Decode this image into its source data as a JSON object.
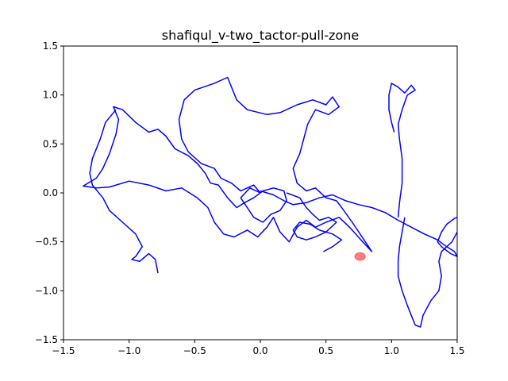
{
  "chart_data": {
    "type": "line",
    "title": "shafiqul_v-two_tactor-pull-zone",
    "xlabel": "",
    "ylabel": "",
    "xlim": [
      -1.5,
      1.5
    ],
    "ylim": [
      -1.5,
      1.5
    ],
    "grid": false,
    "x_ticks": [
      "−1.5",
      "−1.0",
      "−0.5",
      "0.0",
      "0.5",
      "1.0",
      "1.5"
    ],
    "x_tick_values": [
      -1.5,
      -1.0,
      -0.5,
      0.0,
      0.5,
      1.0,
      1.5
    ],
    "y_ticks": [
      "−1.5",
      "−1.0",
      "−0.5",
      "0.0",
      "0.5",
      "1.0",
      "1.5"
    ],
    "y_tick_values": [
      -1.5,
      -1.0,
      -0.5,
      0.0,
      0.5,
      1.0,
      1.5
    ],
    "colors": {
      "trajectory": "#0000ff",
      "target": "#ff0000"
    },
    "target": {
      "x": 0.76,
      "y": -0.65,
      "rx": 0.04,
      "ry": 0.04,
      "opacity": 0.5
    },
    "series": [
      {
        "values": [
          [
            0.0,
            0.0
          ],
          [
            -0.05,
            0.08
          ],
          [
            -0.15,
            0.02
          ],
          [
            -0.22,
            0.1
          ],
          [
            -0.3,
            0.15
          ],
          [
            -0.35,
            0.25
          ],
          [
            -0.45,
            0.3
          ],
          [
            -0.55,
            0.42
          ],
          [
            -0.6,
            0.55
          ],
          [
            -0.62,
            0.75
          ],
          [
            -0.58,
            0.95
          ],
          [
            -0.5,
            1.05
          ],
          [
            -0.35,
            1.12
          ],
          [
            -0.25,
            1.18
          ],
          [
            -0.18,
            0.95
          ],
          [
            -0.1,
            0.85
          ],
          [
            0.05,
            0.8
          ],
          [
            0.15,
            0.82
          ],
          [
            0.28,
            0.9
          ],
          [
            0.4,
            0.95
          ],
          [
            0.5,
            0.9
          ],
          [
            0.55,
            0.98
          ],
          [
            0.6,
            0.88
          ],
          [
            0.52,
            0.8
          ],
          [
            0.42,
            0.85
          ],
          [
            0.36,
            0.7
          ],
          [
            0.33,
            0.55
          ],
          [
            0.3,
            0.4
          ],
          [
            0.25,
            0.25
          ],
          [
            0.28,
            0.1
          ],
          [
            0.35,
            0.02
          ],
          [
            0.42,
            0.05
          ],
          [
            0.5,
            -0.05
          ],
          [
            0.58,
            -0.08
          ],
          [
            0.62,
            -0.15
          ],
          [
            0.7,
            -0.3
          ],
          [
            0.8,
            -0.5
          ],
          [
            0.85,
            -0.6
          ],
          [
            0.78,
            -0.5
          ],
          [
            0.68,
            -0.35
          ],
          [
            0.6,
            -0.25
          ],
          [
            0.5,
            -0.3
          ],
          [
            0.42,
            -0.35
          ],
          [
            0.35,
            -0.28
          ],
          [
            0.28,
            -0.35
          ],
          [
            0.22,
            -0.5
          ],
          [
            0.15,
            -0.4
          ],
          [
            0.1,
            -0.25
          ],
          [
            0.05,
            -0.35
          ],
          [
            -0.02,
            -0.45
          ],
          [
            -0.1,
            -0.38
          ],
          [
            -0.2,
            -0.45
          ],
          [
            -0.28,
            -0.42
          ],
          [
            -0.35,
            -0.3
          ],
          [
            -0.4,
            -0.15
          ],
          [
            -0.48,
            -0.05
          ],
          [
            -0.6,
            0.05
          ],
          [
            -0.72,
            0.02
          ],
          [
            -0.85,
            0.08
          ],
          [
            -1.0,
            0.12
          ],
          [
            -1.15,
            0.06
          ],
          [
            -1.25,
            0.05
          ],
          [
            -1.35,
            0.07
          ],
          [
            -1.25,
            0.15
          ],
          [
            -1.2,
            0.25
          ],
          [
            -1.15,
            0.4
          ],
          [
            -1.1,
            0.6
          ],
          [
            -1.08,
            0.75
          ],
          [
            -1.12,
            0.88
          ],
          [
            -1.05,
            0.85
          ],
          [
            -0.95,
            0.72
          ],
          [
            -0.85,
            0.62
          ],
          [
            -0.78,
            0.65
          ],
          [
            -0.72,
            0.58
          ],
          [
            -0.65,
            0.45
          ],
          [
            -0.55,
            0.38
          ],
          [
            -0.48,
            0.3
          ],
          [
            -0.42,
            0.2
          ],
          [
            -0.38,
            0.1
          ],
          [
            -0.32,
            0.08
          ],
          [
            -0.25,
            -0.05
          ],
          [
            -0.18,
            -0.15
          ],
          [
            -0.12,
            -0.1
          ],
          [
            -0.05,
            -0.05
          ],
          [
            0.02,
            0.02
          ],
          [
            0.1,
            0.05
          ],
          [
            0.18,
            0.02
          ],
          [
            0.2,
            -0.08
          ],
          [
            0.15,
            -0.18
          ],
          [
            0.08,
            -0.22
          ],
          [
            0.02,
            -0.3
          ],
          [
            -0.05,
            -0.25
          ],
          [
            -0.1,
            -0.15
          ],
          [
            -0.15,
            -0.05
          ],
          [
            -0.08,
            0.05
          ],
          [
            0.0,
            0.0
          ]
        ]
      },
      {
        "values": [
          [
            -1.1,
            0.85
          ],
          [
            -1.18,
            0.72
          ],
          [
            -1.22,
            0.55
          ],
          [
            -1.28,
            0.35
          ],
          [
            -1.3,
            0.2
          ],
          [
            -1.28,
            0.08
          ],
          [
            -1.2,
            -0.05
          ],
          [
            -1.15,
            -0.18
          ],
          [
            -1.05,
            -0.3
          ],
          [
            -0.95,
            -0.42
          ],
          [
            -0.9,
            -0.55
          ],
          [
            -0.95,
            -0.65
          ],
          [
            -0.98,
            -0.68
          ],
          [
            -0.92,
            -0.7
          ],
          [
            -0.85,
            -0.62
          ],
          [
            -0.8,
            -0.68
          ],
          [
            -0.78,
            -0.82
          ]
        ]
      },
      {
        "values": [
          [
            0.2,
            0.0
          ],
          [
            0.3,
            -0.05
          ],
          [
            0.35,
            -0.15
          ],
          [
            0.4,
            -0.22
          ],
          [
            0.45,
            -0.28
          ],
          [
            0.52,
            -0.25
          ],
          [
            0.58,
            -0.3
          ],
          [
            0.5,
            -0.4
          ],
          [
            0.42,
            -0.45
          ],
          [
            0.35,
            -0.48
          ],
          [
            0.28,
            -0.45
          ],
          [
            0.25,
            -0.38
          ],
          [
            0.3,
            -0.3
          ],
          [
            0.38,
            -0.32
          ],
          [
            0.45,
            -0.38
          ],
          [
            0.55,
            -0.42
          ],
          [
            0.62,
            -0.48
          ],
          [
            0.55,
            -0.55
          ],
          [
            0.48,
            -0.6
          ]
        ]
      },
      {
        "values": [
          [
            0.0,
            0.02
          ],
          [
            0.1,
            -0.02
          ],
          [
            0.18,
            -0.08
          ],
          [
            0.25,
            -0.12
          ],
          [
            0.35,
            -0.1
          ],
          [
            0.45,
            -0.05
          ],
          [
            0.55,
            -0.02
          ],
          [
            0.65,
            -0.08
          ],
          [
            0.75,
            -0.12
          ],
          [
            0.85,
            -0.15
          ],
          [
            0.95,
            -0.2
          ],
          [
            1.05,
            -0.28
          ],
          [
            1.15,
            -0.35
          ],
          [
            1.25,
            -0.42
          ],
          [
            1.35,
            -0.48
          ],
          [
            1.42,
            -0.55
          ],
          [
            1.48,
            -0.6
          ],
          [
            1.5,
            -0.65
          ],
          [
            1.45,
            -0.62
          ],
          [
            1.38,
            -0.55
          ],
          [
            1.35,
            -0.5
          ],
          [
            1.38,
            -0.4
          ],
          [
            1.42,
            -0.32
          ],
          [
            1.48,
            -0.26
          ],
          [
            1.5,
            -0.25
          ]
        ]
      },
      {
        "values": [
          [
            1.1,
            -0.25
          ],
          [
            1.08,
            -0.4
          ],
          [
            1.06,
            -0.55
          ],
          [
            1.05,
            -0.7
          ],
          [
            1.05,
            -0.85
          ],
          [
            1.08,
            -1.0
          ],
          [
            1.12,
            -1.15
          ],
          [
            1.15,
            -1.25
          ],
          [
            1.18,
            -1.35
          ],
          [
            1.22,
            -1.37
          ],
          [
            1.24,
            -1.25
          ],
          [
            1.3,
            -1.1
          ],
          [
            1.36,
            -1.0
          ],
          [
            1.38,
            -0.85
          ],
          [
            1.36,
            -0.7
          ],
          [
            1.38,
            -0.6
          ],
          [
            1.42,
            -0.55
          ],
          [
            1.46,
            -0.5
          ],
          [
            1.5,
            -0.4
          ]
        ]
      },
      {
        "values": [
          [
            1.05,
            -0.25
          ],
          [
            1.06,
            -0.1
          ],
          [
            1.08,
            0.1
          ],
          [
            1.08,
            0.35
          ],
          [
            1.06,
            0.55
          ],
          [
            1.05,
            0.7
          ],
          [
            1.08,
            0.85
          ],
          [
            1.12,
            1.0
          ],
          [
            1.18,
            1.05
          ],
          [
            1.15,
            1.1
          ],
          [
            1.1,
            1.02
          ],
          [
            1.05,
            1.08
          ],
          [
            1.0,
            1.12
          ],
          [
            0.98,
            1.0
          ],
          [
            0.98,
            0.85
          ],
          [
            1.0,
            0.72
          ],
          [
            1.02,
            0.62
          ]
        ]
      }
    ]
  }
}
